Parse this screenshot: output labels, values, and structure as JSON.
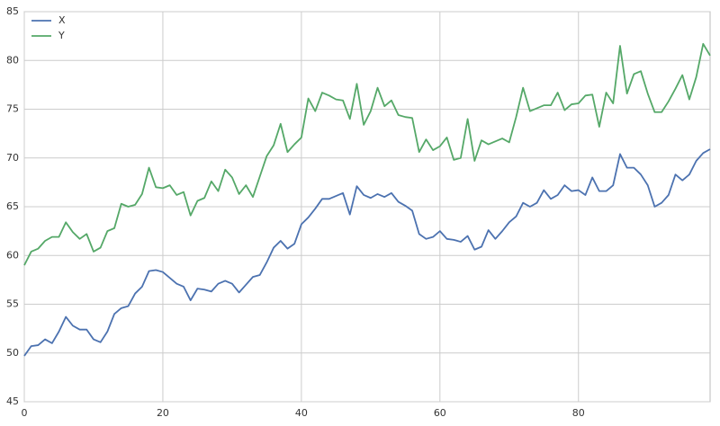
{
  "chart_data": {
    "type": "line",
    "x": [
      0,
      1,
      2,
      3,
      4,
      5,
      6,
      7,
      8,
      9,
      10,
      11,
      12,
      13,
      14,
      15,
      16,
      17,
      18,
      19,
      20,
      21,
      22,
      23,
      24,
      25,
      26,
      27,
      28,
      29,
      30,
      31,
      32,
      33,
      34,
      35,
      36,
      37,
      38,
      39,
      40,
      41,
      42,
      43,
      44,
      45,
      46,
      47,
      48,
      49,
      50,
      51,
      52,
      53,
      54,
      55,
      56,
      57,
      58,
      59,
      60,
      61,
      62,
      63,
      64,
      65,
      66,
      67,
      68,
      69,
      70,
      71,
      72,
      73,
      74,
      75,
      76,
      77,
      78,
      79,
      80,
      81,
      82,
      83,
      84,
      85,
      86,
      87,
      88,
      89,
      90,
      91,
      92,
      93,
      94,
      95,
      96,
      97,
      98,
      99
    ],
    "series": [
      {
        "name": "X",
        "color": "#4c72b0",
        "values": [
          49.7,
          50.7,
          50.8,
          51.4,
          51.0,
          52.2,
          53.7,
          52.8,
          52.4,
          52.4,
          51.4,
          51.1,
          52.2,
          54.0,
          54.6,
          54.8,
          56.1,
          56.8,
          58.4,
          58.5,
          58.3,
          57.7,
          57.1,
          56.8,
          55.4,
          56.6,
          56.5,
          56.3,
          57.1,
          57.4,
          57.1,
          56.2,
          57.0,
          57.8,
          58.0,
          59.3,
          60.8,
          61.5,
          60.7,
          61.2,
          63.2,
          63.9,
          64.8,
          65.8,
          65.8,
          66.1,
          66.4,
          64.2,
          67.1,
          66.2,
          65.9,
          66.3,
          66.0,
          66.4,
          65.5,
          65.1,
          64.6,
          62.2,
          61.7,
          61.9,
          62.5,
          61.7,
          61.6,
          61.4,
          62.0,
          60.6,
          60.9,
          62.6,
          61.7,
          62.5,
          63.4,
          64.0,
          65.4,
          65.0,
          65.4,
          66.7,
          65.8,
          66.2,
          67.2,
          66.6,
          66.7,
          66.2,
          68.0,
          66.6,
          66.6,
          67.2,
          70.4,
          69.0,
          69.0,
          68.3,
          67.2,
          65.0,
          65.4,
          66.2,
          68.3,
          67.7,
          68.3,
          69.7,
          70.5,
          70.9
        ]
      },
      {
        "name": "Y",
        "color": "#55a868",
        "values": [
          59.0,
          60.4,
          60.7,
          61.5,
          61.9,
          61.9,
          63.4,
          62.4,
          61.7,
          62.2,
          60.4,
          60.8,
          62.5,
          62.8,
          65.3,
          65.0,
          65.2,
          66.3,
          69.0,
          67.0,
          66.9,
          67.2,
          66.2,
          66.5,
          64.1,
          65.6,
          65.9,
          67.6,
          66.6,
          68.8,
          68.0,
          66.3,
          67.2,
          66.0,
          68.1,
          70.2,
          71.3,
          73.5,
          70.6,
          71.4,
          72.1,
          76.1,
          74.8,
          76.7,
          76.4,
          76.0,
          75.9,
          74.0,
          77.6,
          73.4,
          74.8,
          77.2,
          75.3,
          75.9,
          74.4,
          74.2,
          74.1,
          70.6,
          71.9,
          70.8,
          71.2,
          72.1,
          69.8,
          70.0,
          74.0,
          69.7,
          71.8,
          71.4,
          71.7,
          72.0,
          71.6,
          74.2,
          77.2,
          74.8,
          75.1,
          75.4,
          75.4,
          76.7,
          74.9,
          75.5,
          75.6,
          76.4,
          76.5,
          73.2,
          76.7,
          75.6,
          81.5,
          76.6,
          78.6,
          78.9,
          76.6,
          74.7,
          74.7,
          75.8,
          77.1,
          78.5,
          76.0,
          78.3,
          81.7,
          80.5
        ]
      }
    ],
    "xlim": [
      0,
      99
    ],
    "xticks": [
      0,
      20,
      40,
      60,
      80
    ],
    "ylim": [
      45,
      85
    ],
    "yticks": [
      45,
      50,
      55,
      60,
      65,
      70,
      75,
      80,
      85
    ],
    "grid": true,
    "legend": "upper-left"
  }
}
